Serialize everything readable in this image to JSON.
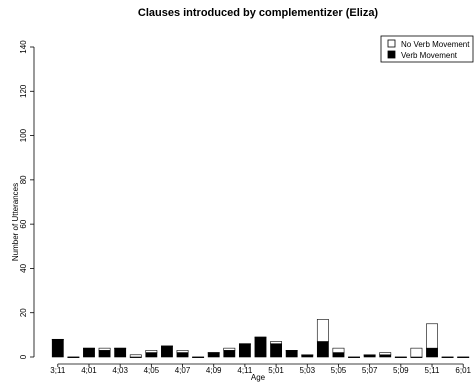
{
  "chart_data": {
    "type": "bar",
    "stacked": true,
    "title": "Clauses introduced by complementizer (Eliza)",
    "xlabel": "Age",
    "ylabel": "Number of Utterances",
    "ylim": [
      0,
      140
    ],
    "yticks": [
      0,
      20,
      40,
      60,
      80,
      100,
      120,
      140
    ],
    "categories": [
      "3;11",
      "4;00",
      "4;01",
      "4;02",
      "4;03",
      "4;04",
      "4;05",
      "4;06",
      "4;07",
      "4;08",
      "4;09",
      "4;10",
      "4;11",
      "5;00",
      "5;01",
      "5;02",
      "5;03",
      "5;04",
      "5;05",
      "5;06",
      "5;07",
      "5;08",
      "5;09",
      "5;10",
      "5;11",
      "6;00",
      "6;01"
    ],
    "xtick_labels": [
      "3;11",
      "4;01",
      "4;03",
      "4;05",
      "4;07",
      "4;09",
      "4;11",
      "5;01",
      "5;03",
      "5;05",
      "5;07",
      "5;09",
      "5;11",
      "6;01"
    ],
    "series": [
      {
        "name": "Verb Movement",
        "color": "#000000",
        "values": [
          8,
          0,
          4,
          3,
          4,
          0,
          2,
          5,
          2,
          0,
          2,
          3,
          6,
          9,
          6,
          3,
          1,
          7,
          2,
          0,
          1,
          1,
          0,
          0,
          4,
          0,
          0
        ]
      },
      {
        "name": "No Verb Movement",
        "color": "#ffffff",
        "values": [
          0,
          0,
          0,
          1,
          0,
          1,
          1,
          0,
          1,
          0,
          0,
          1,
          0,
          0,
          1,
          0,
          0,
          10,
          2,
          0,
          0,
          1,
          0,
          4,
          11,
          0,
          0
        ]
      }
    ],
    "legend_position": "top-right",
    "grid": false
  }
}
